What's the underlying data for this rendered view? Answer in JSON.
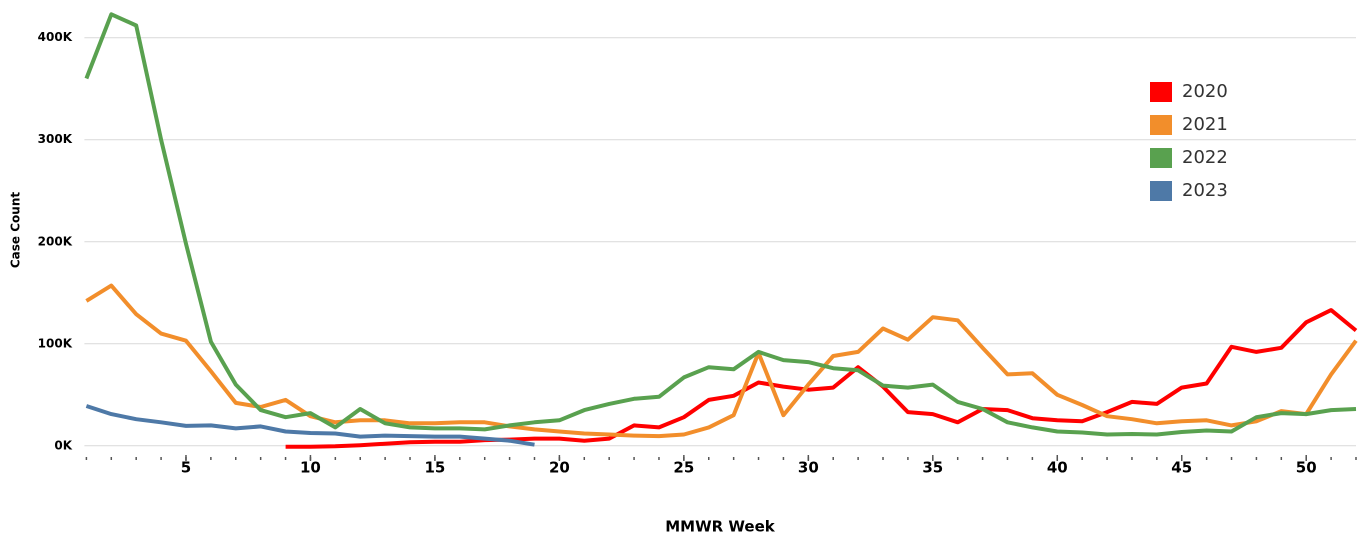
{
  "chart_data": {
    "type": "line",
    "x_label": "MMWR Week",
    "y_label": "Case Count",
    "x": [
      1,
      2,
      3,
      4,
      5,
      6,
      7,
      8,
      9,
      10,
      11,
      12,
      13,
      14,
      15,
      16,
      17,
      18,
      19,
      20,
      21,
      22,
      23,
      24,
      25,
      26,
      27,
      28,
      29,
      30,
      31,
      32,
      33,
      34,
      35,
      36,
      37,
      38,
      39,
      40,
      41,
      42,
      43,
      44,
      45,
      46,
      47,
      48,
      49,
      50,
      51,
      52
    ],
    "series": [
      {
        "name": "2020",
        "color": "#ff0000",
        "values": [
          null,
          null,
          null,
          null,
          null,
          null,
          null,
          null,
          -1000,
          -1000,
          -500,
          500,
          2000,
          3500,
          4000,
          4000,
          5500,
          6000,
          7000,
          7000,
          5000,
          7000,
          20000,
          18000,
          28000,
          45000,
          49000,
          62000,
          58000,
          55000,
          57000,
          77000,
          58000,
          33000,
          31000,
          23000,
          36000,
          35000,
          27000,
          25000,
          24000,
          33000,
          43000,
          41000,
          57000,
          61000,
          97000,
          92000,
          96000,
          121000,
          133000,
          113000
        ]
      },
      {
        "name": "2021",
        "color": "#f28e2b",
        "values": [
          142000,
          157000,
          129000,
          110000,
          103000,
          73000,
          42000,
          38000,
          45000,
          29000,
          23000,
          25000,
          25000,
          22000,
          22000,
          23000,
          23000,
          19000,
          16000,
          14000,
          12000,
          11000,
          10000,
          9500,
          11000,
          18000,
          30000,
          91000,
          30000,
          60000,
          88000,
          92000,
          115000,
          104000,
          126000,
          123000,
          96000,
          70000,
          71000,
          50000,
          40000,
          29000,
          26000,
          22000,
          24000,
          25000,
          20000,
          24000,
          34000,
          31000,
          70000,
          103000
        ]
      },
      {
        "name": "2022",
        "color": "#59a14f",
        "values": [
          360000,
          423000,
          412000,
          300000,
          198000,
          102000,
          60000,
          35000,
          28000,
          32000,
          18000,
          36000,
          22000,
          18000,
          17000,
          17000,
          16000,
          20000,
          23000,
          25000,
          35000,
          41000,
          46000,
          48000,
          67000,
          77000,
          75000,
          92000,
          84000,
          82000,
          76000,
          74000,
          59000,
          57000,
          60000,
          43000,
          36000,
          23000,
          18000,
          14000,
          13000,
          11000,
          11500,
          11000,
          13500,
          15000,
          14000,
          28000,
          32000,
          31000,
          35000,
          36000
        ]
      },
      {
        "name": "2023",
        "color": "#4e79a7",
        "values": [
          39000,
          31000,
          26000,
          23000,
          19500,
          20000,
          17000,
          19000,
          14000,
          12500,
          12000,
          9000,
          10000,
          9500,
          9000,
          9000,
          7000,
          5000,
          1000,
          null,
          null,
          null,
          null,
          null,
          null,
          null,
          null,
          null,
          null,
          null,
          null,
          null,
          null,
          null,
          null,
          null,
          null,
          null,
          null,
          null,
          null,
          null,
          null,
          null,
          null,
          null,
          null,
          null,
          null,
          null,
          null,
          null
        ]
      }
    ],
    "xlim": [
      1,
      52
    ],
    "xticks": [
      5,
      10,
      15,
      20,
      25,
      30,
      35,
      40,
      45,
      50
    ],
    "xminorticks": [
      1,
      2,
      3,
      4,
      5,
      6,
      7,
      8,
      9,
      10,
      11,
      12,
      13,
      14,
      15,
      16,
      17,
      18,
      19,
      20,
      21,
      22,
      23,
      24,
      25,
      26,
      27,
      28,
      29,
      30,
      31,
      32,
      33,
      34,
      35,
      36,
      37,
      38,
      39,
      40,
      41,
      42,
      43,
      44,
      45,
      46,
      47,
      48,
      49,
      50,
      51,
      52
    ],
    "ylim": [
      -12000,
      437000
    ],
    "yticks": [
      {
        "value": 0,
        "label": "0K"
      },
      {
        "value": 100000,
        "label": "100K"
      },
      {
        "value": 200000,
        "label": "200K"
      },
      {
        "value": 300000,
        "label": "300K"
      },
      {
        "value": 400000,
        "label": "400K"
      }
    ],
    "grid": true,
    "legend": "upper right"
  }
}
